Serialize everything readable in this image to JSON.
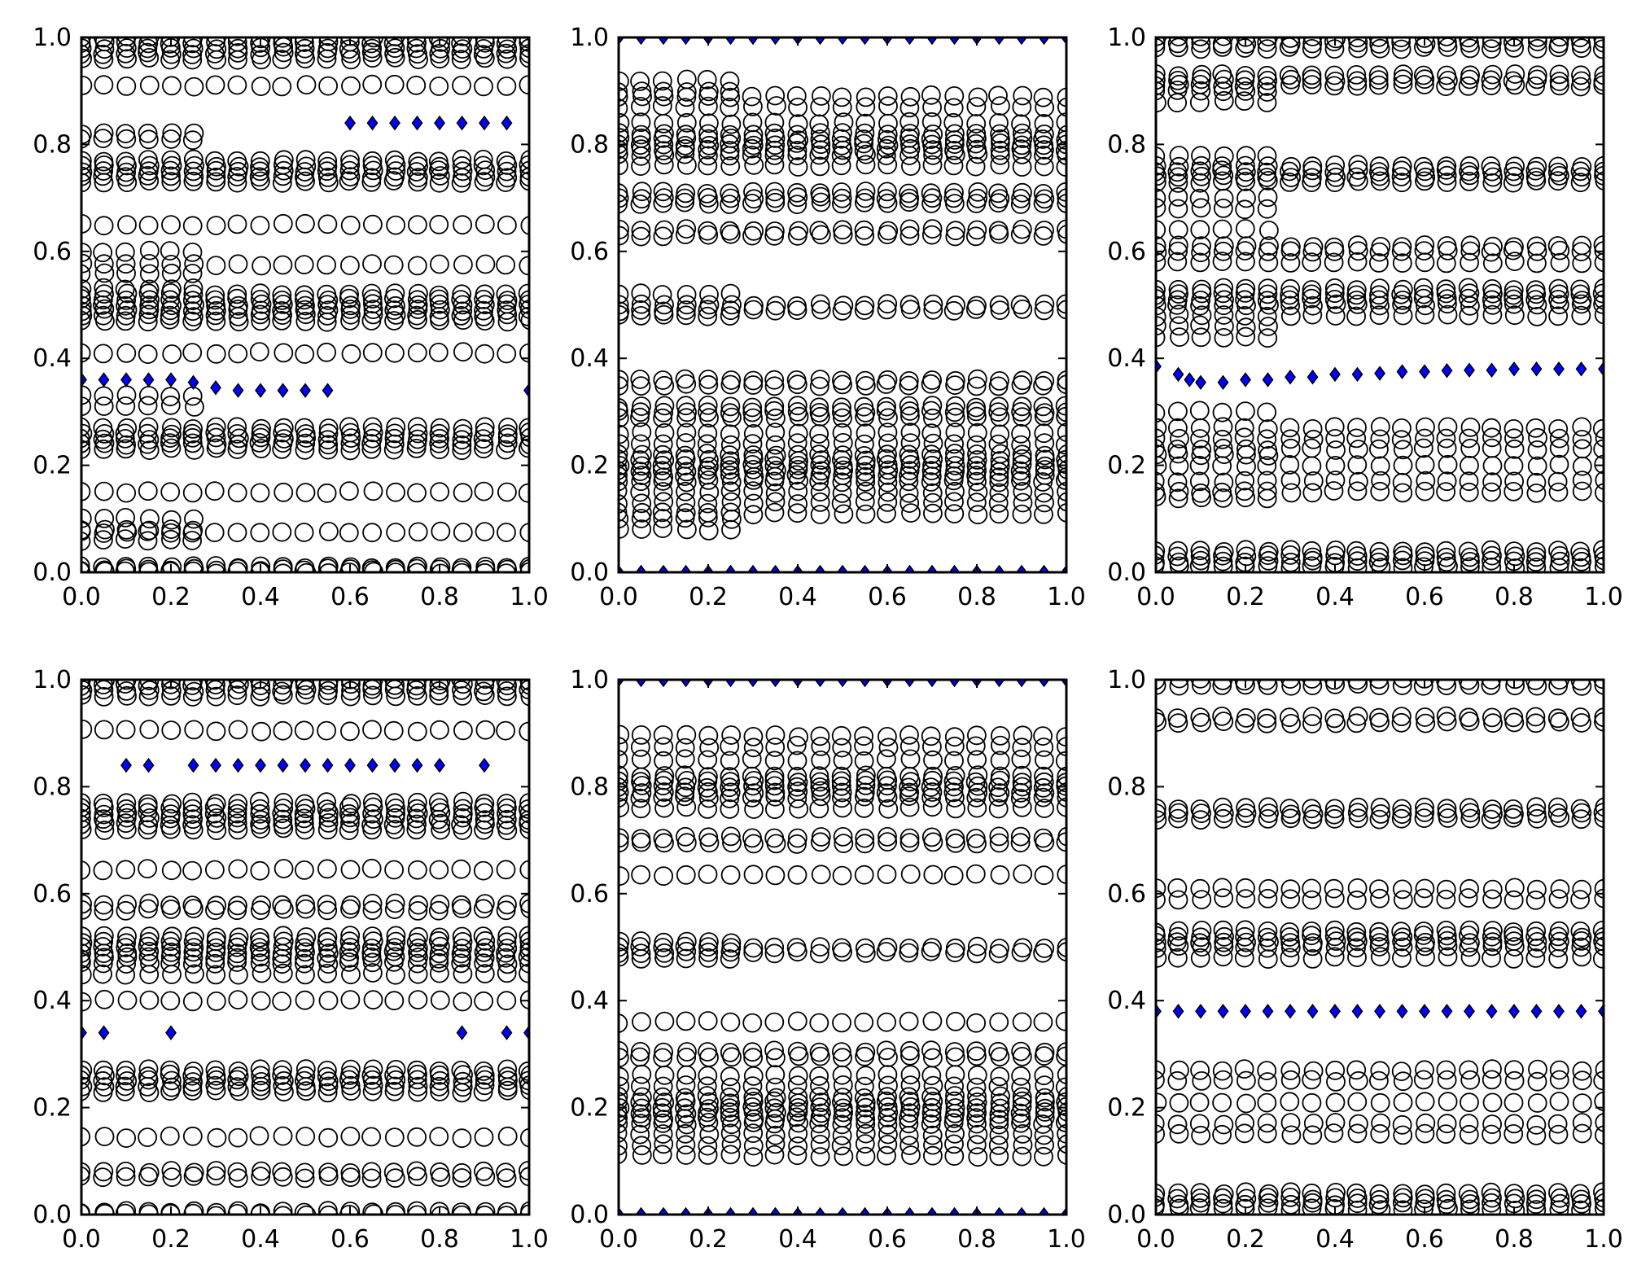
{
  "chart_data": [
    {
      "type": "scatter",
      "panel": "top-left",
      "xlim": [
        0.0,
        1.0
      ],
      "ylim": [
        0.0,
        1.0
      ],
      "xticks": [
        "0.0",
        "0.2",
        "0.4",
        "0.6",
        "0.8",
        "1.0"
      ],
      "yticks": [
        "0.0",
        "0.2",
        "0.4",
        "0.6",
        "0.8",
        "1.0"
      ],
      "grid": false,
      "x": [
        0.0,
        0.05,
        0.1,
        0.15,
        0.2,
        0.25,
        0.3,
        0.35,
        0.4,
        0.45,
        0.5,
        0.55,
        0.6,
        0.65,
        0.7,
        0.75,
        0.8,
        0.85,
        0.9,
        0.95,
        1.0
      ],
      "circle_series": {
        "marker": "open-circle",
        "y_levels_all_x": [
          0.0,
          0.005,
          0.01,
          0.23,
          0.24,
          0.25,
          0.26,
          0.27,
          0.47,
          0.48,
          0.49,
          0.5,
          0.51,
          0.52,
          0.73,
          0.74,
          0.75,
          0.76,
          0.77,
          0.96,
          0.97,
          0.98,
          0.99,
          1.0,
          0.075,
          0.15,
          0.41,
          0.575,
          0.65,
          0.91
        ],
        "y_levels_x_le_0_25": [
          0.06,
          0.08,
          0.1,
          0.31,
          0.33,
          0.53,
          0.56,
          0.6,
          0.81,
          0.82
        ]
      },
      "diamond_series": {
        "marker": "diamond",
        "color": "#0000ff",
        "points": [
          [
            0.0,
            0.36
          ],
          [
            0.05,
            0.36
          ],
          [
            0.1,
            0.36
          ],
          [
            0.15,
            0.36
          ],
          [
            0.2,
            0.36
          ],
          [
            0.25,
            0.355
          ],
          [
            0.3,
            0.345
          ],
          [
            0.35,
            0.34
          ],
          [
            0.4,
            0.34
          ],
          [
            0.45,
            0.34
          ],
          [
            0.5,
            0.34
          ],
          [
            0.55,
            0.34
          ],
          [
            0.6,
            0.84
          ],
          [
            0.65,
            0.84
          ],
          [
            0.7,
            0.84
          ],
          [
            0.75,
            0.84
          ],
          [
            0.8,
            0.84
          ],
          [
            0.85,
            0.84
          ],
          [
            0.9,
            0.84
          ],
          [
            0.95,
            0.84
          ],
          [
            1.0,
            0.34
          ]
        ]
      }
    },
    {
      "type": "scatter",
      "panel": "top-center",
      "xlim": [
        0.0,
        1.0
      ],
      "ylim": [
        0.0,
        1.0
      ],
      "xticks": [
        "0.0",
        "0.2",
        "0.4",
        "0.6",
        "0.8",
        "1.0"
      ],
      "yticks": [
        "0.0",
        "0.2",
        "0.4",
        "0.6",
        "0.8",
        "1.0"
      ],
      "grid": false,
      "x": [
        0.0,
        0.05,
        0.1,
        0.15,
        0.2,
        0.25,
        0.3,
        0.35,
        0.4,
        0.45,
        0.5,
        0.55,
        0.6,
        0.65,
        0.7,
        0.75,
        0.8,
        0.85,
        0.9,
        0.95,
        1.0
      ],
      "circle_series": {
        "marker": "open-circle",
        "y_levels_all_x": [
          0.11,
          0.13,
          0.15,
          0.17,
          0.18,
          0.19,
          0.2,
          0.21,
          0.22,
          0.24,
          0.26,
          0.29,
          0.3,
          0.31,
          0.35,
          0.36,
          0.49,
          0.5,
          0.63,
          0.64,
          0.69,
          0.7,
          0.71,
          0.76,
          0.78,
          0.79,
          0.8,
          0.81,
          0.82,
          0.84,
          0.87,
          0.89
        ],
        "y_levels_x_le_0_25": [
          0.08,
          0.1,
          0.48,
          0.52,
          0.9,
          0.92
        ]
      },
      "diamond_series": {
        "marker": "diamond",
        "color": "#0000ff",
        "points": [
          [
            0.0,
            0.0
          ],
          [
            0.05,
            0.0
          ],
          [
            0.1,
            0.0
          ],
          [
            0.15,
            0.0
          ],
          [
            0.2,
            0.0
          ],
          [
            0.25,
            0.0
          ],
          [
            0.3,
            0.0
          ],
          [
            0.35,
            0.0
          ],
          [
            0.4,
            0.0
          ],
          [
            0.45,
            0.0
          ],
          [
            0.5,
            0.0
          ],
          [
            0.55,
            0.0
          ],
          [
            0.6,
            0.0
          ],
          [
            0.65,
            0.0
          ],
          [
            0.7,
            0.0
          ],
          [
            0.75,
            0.0
          ],
          [
            0.8,
            0.0
          ],
          [
            0.85,
            0.0
          ],
          [
            0.9,
            0.0
          ],
          [
            0.95,
            0.0
          ],
          [
            1.0,
            0.0
          ],
          [
            0.0,
            1.0
          ],
          [
            0.05,
            1.0
          ],
          [
            0.1,
            1.0
          ],
          [
            0.15,
            1.0
          ],
          [
            0.2,
            1.0
          ],
          [
            0.25,
            1.0
          ],
          [
            0.3,
            1.0
          ],
          [
            0.35,
            1.0
          ],
          [
            0.4,
            1.0
          ],
          [
            0.45,
            1.0
          ],
          [
            0.5,
            1.0
          ],
          [
            0.55,
            1.0
          ],
          [
            0.6,
            1.0
          ],
          [
            0.65,
            1.0
          ],
          [
            0.7,
            1.0
          ],
          [
            0.75,
            1.0
          ],
          [
            0.8,
            1.0
          ],
          [
            0.85,
            1.0
          ],
          [
            0.9,
            1.0
          ],
          [
            0.95,
            1.0
          ],
          [
            1.0,
            1.0
          ]
        ]
      }
    },
    {
      "type": "scatter",
      "panel": "top-right",
      "xlim": [
        0.0,
        1.0
      ],
      "ylim": [
        0.0,
        1.0
      ],
      "xticks": [
        "0.0",
        "0.2",
        "0.4",
        "0.6",
        "0.8",
        "1.0"
      ],
      "yticks": [
        "0.0",
        "0.2",
        "0.4",
        "0.6",
        "0.8",
        "1.0"
      ],
      "grid": false,
      "x": [
        0.0,
        0.05,
        0.1,
        0.15,
        0.2,
        0.25,
        0.3,
        0.35,
        0.4,
        0.45,
        0.5,
        0.55,
        0.6,
        0.65,
        0.7,
        0.75,
        0.8,
        0.85,
        0.9,
        0.95,
        1.0
      ],
      "circle_series": {
        "marker": "open-circle",
        "y_levels_all_x": [
          0.01,
          0.02,
          0.03,
          0.04,
          0.15,
          0.17,
          0.2,
          0.23,
          0.25,
          0.27,
          0.48,
          0.5,
          0.51,
          0.52,
          0.53,
          0.58,
          0.6,
          0.61,
          0.73,
          0.74,
          0.75,
          0.76,
          0.91,
          0.92,
          0.93,
          0.98,
          0.99,
          1.0
        ],
        "y_levels_x_le_0_25": [
          0.14,
          0.22,
          0.3,
          0.44,
          0.46,
          0.64,
          0.68,
          0.7,
          0.78,
          0.88,
          0.9
        ]
      },
      "diamond_series": {
        "marker": "diamond",
        "color": "#0000ff",
        "points": [
          [
            0.0,
            0.385
          ],
          [
            0.05,
            0.37
          ],
          [
            0.075,
            0.36
          ],
          [
            0.1,
            0.355
          ],
          [
            0.15,
            0.355
          ],
          [
            0.2,
            0.36
          ],
          [
            0.25,
            0.36
          ],
          [
            0.3,
            0.365
          ],
          [
            0.35,
            0.365
          ],
          [
            0.4,
            0.37
          ],
          [
            0.45,
            0.37
          ],
          [
            0.5,
            0.372
          ],
          [
            0.55,
            0.375
          ],
          [
            0.6,
            0.375
          ],
          [
            0.65,
            0.377
          ],
          [
            0.7,
            0.378
          ],
          [
            0.75,
            0.378
          ],
          [
            0.8,
            0.38
          ],
          [
            0.85,
            0.38
          ],
          [
            0.9,
            0.38
          ],
          [
            0.95,
            0.38
          ],
          [
            1.0,
            0.38
          ]
        ]
      }
    },
    {
      "type": "scatter",
      "panel": "bottom-left",
      "xlim": [
        0.0,
        1.0
      ],
      "ylim": [
        0.0,
        1.0
      ],
      "xticks": [
        "0.0",
        "0.2",
        "0.4",
        "0.6",
        "0.8",
        "1.0"
      ],
      "yticks": [
        "0.0",
        "0.2",
        "0.4",
        "0.6",
        "0.8",
        "1.0"
      ],
      "grid": false,
      "x": [
        0.0,
        0.05,
        0.1,
        0.15,
        0.2,
        0.25,
        0.3,
        0.35,
        0.4,
        0.45,
        0.5,
        0.55,
        0.6,
        0.65,
        0.7,
        0.75,
        0.8,
        0.85,
        0.9,
        0.95,
        1.0
      ],
      "circle_series": {
        "marker": "open-circle",
        "y_levels_all_x": [
          0.0,
          0.005,
          0.07,
          0.08,
          0.145,
          0.23,
          0.24,
          0.25,
          0.26,
          0.27,
          0.4,
          0.45,
          0.47,
          0.48,
          0.49,
          0.5,
          0.51,
          0.52,
          0.57,
          0.58,
          0.645,
          0.72,
          0.73,
          0.74,
          0.75,
          0.76,
          0.77,
          0.905,
          0.97,
          0.98,
          0.99,
          1.0
        ],
        "y_levels_x_le_0_25": []
      },
      "diamond_series": {
        "marker": "diamond",
        "color": "#0000ff",
        "points": [
          [
            0.0,
            0.34
          ],
          [
            0.05,
            0.34
          ],
          [
            0.1,
            0.84
          ],
          [
            0.15,
            0.84
          ],
          [
            0.2,
            0.34
          ],
          [
            0.25,
            0.84
          ],
          [
            0.3,
            0.84
          ],
          [
            0.35,
            0.84
          ],
          [
            0.4,
            0.84
          ],
          [
            0.45,
            0.84
          ],
          [
            0.5,
            0.84
          ],
          [
            0.55,
            0.84
          ],
          [
            0.6,
            0.84
          ],
          [
            0.65,
            0.84
          ],
          [
            0.7,
            0.84
          ],
          [
            0.75,
            0.84
          ],
          [
            0.8,
            0.84
          ],
          [
            0.85,
            0.34
          ],
          [
            0.9,
            0.84
          ],
          [
            0.95,
            0.34
          ],
          [
            1.0,
            0.34
          ]
        ]
      }
    },
    {
      "type": "scatter",
      "panel": "bottom-center",
      "xlim": [
        0.0,
        1.0
      ],
      "ylim": [
        0.0,
        1.0
      ],
      "xticks": [
        "0.0",
        "0.2",
        "0.4",
        "0.6",
        "0.8",
        "1.0"
      ],
      "yticks": [
        "0.0",
        "0.2",
        "0.4",
        "0.6",
        "0.8",
        "1.0"
      ],
      "grid": false,
      "x": [
        0.0,
        0.05,
        0.1,
        0.15,
        0.2,
        0.25,
        0.3,
        0.35,
        0.4,
        0.45,
        0.5,
        0.55,
        0.6,
        0.65,
        0.7,
        0.75,
        0.8,
        0.85,
        0.9,
        0.95,
        1.0
      ],
      "circle_series": {
        "marker": "open-circle",
        "y_levels_all_x": [
          0.11,
          0.13,
          0.15,
          0.17,
          0.18,
          0.19,
          0.2,
          0.21,
          0.22,
          0.24,
          0.26,
          0.295,
          0.305,
          0.36,
          0.49,
          0.5,
          0.635,
          0.695,
          0.705,
          0.76,
          0.78,
          0.79,
          0.8,
          0.81,
          0.82,
          0.85,
          0.875,
          0.895
        ],
        "y_levels_x_le_0_25": [
          0.48,
          0.51
        ]
      },
      "diamond_series": {
        "marker": "diamond",
        "color": "#0000ff",
        "points": [
          [
            0.0,
            0.0
          ],
          [
            0.05,
            0.0
          ],
          [
            0.1,
            0.0
          ],
          [
            0.15,
            0.0
          ],
          [
            0.2,
            0.0
          ],
          [
            0.25,
            0.0
          ],
          [
            0.3,
            0.0
          ],
          [
            0.35,
            0.0
          ],
          [
            0.4,
            0.0
          ],
          [
            0.45,
            0.0
          ],
          [
            0.5,
            0.0
          ],
          [
            0.55,
            0.0
          ],
          [
            0.6,
            0.0
          ],
          [
            0.65,
            0.0
          ],
          [
            0.7,
            0.0
          ],
          [
            0.75,
            0.0
          ],
          [
            0.8,
            0.0
          ],
          [
            0.85,
            0.0
          ],
          [
            0.9,
            0.0
          ],
          [
            0.95,
            0.0
          ],
          [
            1.0,
            0.0
          ],
          [
            0.0,
            1.0
          ],
          [
            0.05,
            1.0
          ],
          [
            0.1,
            1.0
          ],
          [
            0.15,
            1.0
          ],
          [
            0.2,
            1.0
          ],
          [
            0.25,
            1.0
          ],
          [
            0.3,
            1.0
          ],
          [
            0.35,
            1.0
          ],
          [
            0.4,
            1.0
          ],
          [
            0.45,
            1.0
          ],
          [
            0.5,
            1.0
          ],
          [
            0.55,
            1.0
          ],
          [
            0.6,
            1.0
          ],
          [
            0.65,
            1.0
          ],
          [
            0.7,
            1.0
          ],
          [
            0.75,
            1.0
          ],
          [
            0.8,
            1.0
          ],
          [
            0.85,
            1.0
          ],
          [
            0.9,
            1.0
          ],
          [
            0.95,
            1.0
          ],
          [
            1.0,
            1.0
          ]
        ]
      }
    },
    {
      "type": "scatter",
      "panel": "bottom-right",
      "xlim": [
        0.0,
        1.0
      ],
      "ylim": [
        0.0,
        1.0
      ],
      "xticks": [
        "0.0",
        "0.2",
        "0.4",
        "0.6",
        "0.8",
        "1.0"
      ],
      "yticks": [
        "0.0",
        "0.2",
        "0.4",
        "0.6",
        "0.8",
        "1.0"
      ],
      "grid": false,
      "x": [
        0.0,
        0.05,
        0.1,
        0.15,
        0.2,
        0.25,
        0.3,
        0.35,
        0.4,
        0.45,
        0.5,
        0.55,
        0.6,
        0.65,
        0.7,
        0.75,
        0.8,
        0.85,
        0.9,
        0.95,
        1.0
      ],
      "circle_series": {
        "marker": "open-circle",
        "y_levels_all_x": [
          0.01,
          0.02,
          0.03,
          0.04,
          0.15,
          0.17,
          0.21,
          0.25,
          0.27,
          0.48,
          0.5,
          0.51,
          0.52,
          0.53,
          0.59,
          0.61,
          0.74,
          0.75,
          0.76,
          0.92,
          0.93,
          0.99,
          1.0
        ],
        "y_levels_x_le_0_25": []
      },
      "diamond_series": {
        "marker": "diamond",
        "color": "#0000ff",
        "points": [
          [
            0.0,
            0.38
          ],
          [
            0.05,
            0.38
          ],
          [
            0.1,
            0.38
          ],
          [
            0.15,
            0.38
          ],
          [
            0.2,
            0.38
          ],
          [
            0.25,
            0.38
          ],
          [
            0.3,
            0.38
          ],
          [
            0.35,
            0.38
          ],
          [
            0.4,
            0.38
          ],
          [
            0.45,
            0.38
          ],
          [
            0.5,
            0.38
          ],
          [
            0.55,
            0.38
          ],
          [
            0.6,
            0.38
          ],
          [
            0.65,
            0.38
          ],
          [
            0.7,
            0.38
          ],
          [
            0.75,
            0.38
          ],
          [
            0.8,
            0.38
          ],
          [
            0.85,
            0.38
          ],
          [
            0.9,
            0.38
          ],
          [
            0.95,
            0.38
          ],
          [
            1.0,
            0.38
          ]
        ]
      }
    }
  ]
}
